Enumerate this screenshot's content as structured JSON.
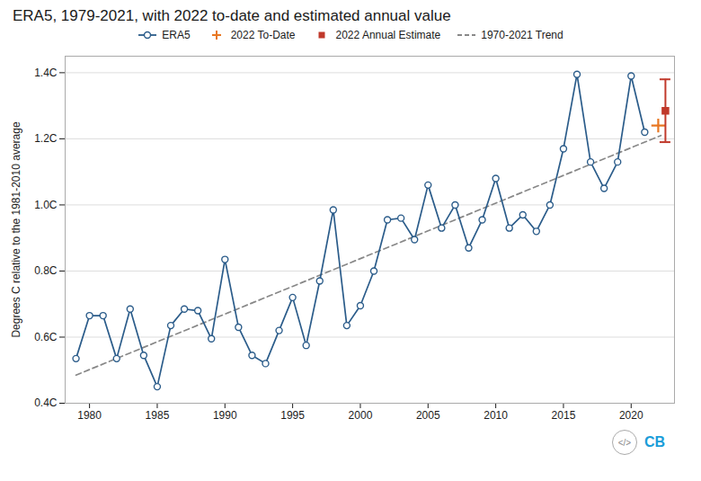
{
  "chart_data": {
    "type": "line",
    "title": "ERA5, 1979-2021, with 2022 to-date and estimated annual value",
    "y_label": "Degrees C relative to the 1981-2010 average",
    "series": [
      {
        "name": "ERA5",
        "type": "line",
        "color": "#2b5c8a",
        "marker": "circle",
        "x": [
          1979,
          1980,
          1981,
          1982,
          1983,
          1984,
          1985,
          1986,
          1987,
          1988,
          1989,
          1990,
          1991,
          1992,
          1993,
          1994,
          1995,
          1996,
          1997,
          1998,
          1999,
          2000,
          2001,
          2002,
          2003,
          2004,
          2005,
          2006,
          2007,
          2008,
          2009,
          2010,
          2011,
          2012,
          2013,
          2014,
          2015,
          2016,
          2017,
          2018,
          2019,
          2020,
          2021
        ],
        "values": [
          0.535,
          0.665,
          0.665,
          0.535,
          0.685,
          0.545,
          0.45,
          0.635,
          0.685,
          0.68,
          0.595,
          0.835,
          0.63,
          0.545,
          0.52,
          0.62,
          0.72,
          0.575,
          0.77,
          0.985,
          0.635,
          0.695,
          0.8,
          0.955,
          0.96,
          0.895,
          1.06,
          0.93,
          1.0,
          0.87,
          0.955,
          1.08,
          0.93,
          0.97,
          0.92,
          1.0,
          1.17,
          1.395,
          1.13,
          1.05,
          1.13,
          1.39,
          1.22
        ]
      },
      {
        "name": "2022 To-Date",
        "type": "scatter",
        "color": "#e87722",
        "marker": "plus",
        "x": [
          2022
        ],
        "values": [
          1.24
        ]
      },
      {
        "name": "2022 Annual Estimate",
        "type": "scatter",
        "color": "#c0392b",
        "marker": "square",
        "x": [
          2022
        ],
        "values": [
          1.285
        ],
        "error_low": [
          0.095
        ],
        "error_high": [
          0.095
        ]
      },
      {
        "name": "1970-2021 Trend",
        "type": "line",
        "color": "#888888",
        "line_style": "dashed",
        "x": [
          1979,
          2022.2
        ],
        "values": [
          0.4851,
          1.2101
        ]
      }
    ],
    "xlim": [
      1978.2,
      2023.2
    ],
    "xticks": [
      1980,
      1985,
      1990,
      1995,
      2000,
      2005,
      2010,
      2015,
      2020
    ],
    "ylim": [
      0.4,
      1.45
    ],
    "yticks": [
      {
        "value": 0.4,
        "label": "0.4C"
      },
      {
        "value": 0.6,
        "label": "0.6C"
      },
      {
        "value": 0.8,
        "label": "0.8C"
      },
      {
        "value": 1.0,
        "label": "1.0C"
      },
      {
        "value": 1.2,
        "label": "1.2C"
      },
      {
        "value": 1.4,
        "label": "1.4C"
      }
    ],
    "grid": "y",
    "legend": "top",
    "annotations": [
      "</>",
      "CB"
    ]
  }
}
